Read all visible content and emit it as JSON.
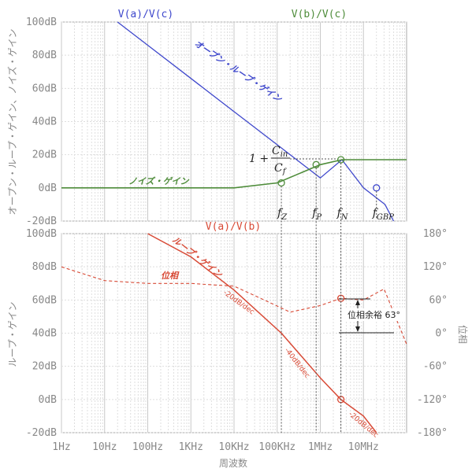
{
  "chart_data": [
    {
      "type": "line",
      "panel": "top",
      "x_scale": "log",
      "xlim": [
        1,
        100000000
      ],
      "ylim": [
        -20,
        100
      ],
      "ylabel": "オープン・ループ・ゲイン、ノイズ・ゲイン",
      "y_ticks": [
        "100dB",
        "80dB",
        "60dB",
        "40dB",
        "20dB",
        "0dB",
        "-20dB"
      ],
      "grid": true,
      "series": [
        {
          "name": "V(a)/V(c)",
          "color": "#3f48cc",
          "x": [
            1,
            20,
            100,
            1000,
            10000,
            100000,
            1000000,
            3160000,
            10000000,
            31600000,
            50000000
          ],
          "y": [
            126,
            100,
            86,
            66,
            46,
            26,
            6,
            17,
            0,
            -10,
            -20
          ]
        },
        {
          "name": "V(b)/V(c)",
          "color": "#4e8c3a",
          "x": [
            1,
            1000,
            10000,
            100000,
            1000000,
            3160000,
            10000000,
            100000000
          ],
          "y": [
            0,
            0,
            0,
            3,
            14,
            17,
            17,
            17
          ]
        }
      ],
      "annotations": {
        "open_loop": "オープン・ループ・ゲイン",
        "noise_gain": "ノイズ・ゲイン",
        "formula_one": "1 +",
        "formula_num": "C",
        "formula_num_sub": "in",
        "formula_den": "C",
        "formula_den_sub": "f",
        "markers": [
          {
            "label": "f",
            "sub": "Z",
            "x": 125000,
            "y": 3
          },
          {
            "label": "f",
            "sub": "P",
            "x": 800000,
            "y": 14
          },
          {
            "label": "f",
            "sub": "N",
            "x": 3000000,
            "y": 17
          },
          {
            "label": "f",
            "sub": "GBP",
            "x": 20000000,
            "y": 0
          }
        ]
      }
    },
    {
      "type": "line",
      "panel": "bottom",
      "x_scale": "log",
      "xlim": [
        1,
        100000000
      ],
      "ylim": [
        -20,
        100
      ],
      "y2lim": [
        -180,
        180
      ],
      "xlabel": "周波数",
      "ylabel": "ループ・ゲイン",
      "y2label": "位相",
      "x_ticks": [
        "1Hz",
        "10Hz",
        "100Hz",
        "1KHz",
        "10KHz",
        "100KHz",
        "1MHz",
        "10MHz"
      ],
      "y_ticks": [
        "100dB",
        "80dB",
        "60dB",
        "40dB",
        "20dB",
        "0dB",
        "-20dB"
      ],
      "y2_ticks": [
        "180°",
        "120°",
        "60°",
        "0°",
        "-60°",
        "-120°",
        "-180°"
      ],
      "grid": true,
      "series": [
        {
          "name": "V(a)/V(b)",
          "color": "#d84a36",
          "x": [
            100,
            1000,
            10000,
            125000,
            1000000,
            3000000,
            10000000,
            20000000
          ],
          "y": [
            100,
            86,
            66,
            40,
            13,
            0,
            -10,
            -20
          ]
        },
        {
          "name": "位相",
          "color": "#d84a36",
          "dashed": true,
          "axis": "right",
          "x": [
            1,
            10,
            100,
            1000,
            10000,
            50000,
            200000,
            1000000,
            3000000,
            10000000,
            30000000,
            100000000
          ],
          "y": [
            120,
            95,
            90,
            90,
            85,
            60,
            38,
            50,
            63,
            60,
            80,
            -20
          ]
        }
      ],
      "annotations": {
        "loop_gain": "ループ・ゲイン",
        "phase": "位相",
        "slope_1": "-20dB/dec",
        "slope_2": "-40dB/dec",
        "slope_3": "-20dB/dec",
        "phase_margin": "位相余裕 63°"
      }
    }
  ]
}
